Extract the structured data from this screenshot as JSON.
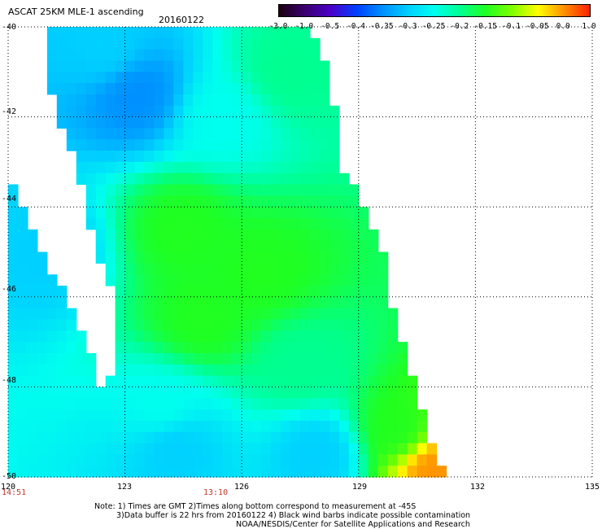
{
  "header": {
    "title": "ASCAT 25KM MLE-1 ascending",
    "date": "20160122"
  },
  "colorbar": {
    "labels": [
      "-3.0",
      "-1.0",
      "-0.5",
      "-0.4",
      "-0.35",
      "-0.3",
      "-0.25",
      "-0.2",
      "-0.15",
      "-0.1",
      "-0.05",
      "0.0",
      "1.0"
    ],
    "colors": [
      "#1a0010",
      "#3b0070",
      "#4a00c8",
      "#0040ff",
      "#0090ff",
      "#00d0ff",
      "#00ffee",
      "#00ff90",
      "#20ff20",
      "#80ff00",
      "#ffff00",
      "#ff9000",
      "#ff2000"
    ]
  },
  "axes": {
    "y_labels": [
      "-40",
      "-42",
      "-44",
      "-46",
      "-48",
      "-50"
    ],
    "x_labels": [
      "120",
      "123",
      "126",
      "129",
      "132",
      "135"
    ],
    "times": [
      "14:51",
      "13:10"
    ]
  },
  "notes": {
    "line1": "Note: 1) Times are GMT 2)Times along bottom correspond to measurement at -45S",
    "line2": "3)Data buffer is 22 hrs from 20160122 4) Black wind barbs indicate possible contamination",
    "line3": "NOAA/NESDIS/Center for Satellite Applications and Research"
  },
  "chart_data": {
    "type": "heatmap",
    "title": "ASCAT 25KM MLE-1 ascending",
    "subtitle": "20160122",
    "x_ticks": [
      120,
      123,
      126,
      129,
      132,
      135
    ],
    "y_ticks": [
      -40,
      -42,
      -44,
      -46,
      -48,
      -50
    ],
    "xlim": [
      120,
      135
    ],
    "ylim": [
      -50,
      -40
    ],
    "grid": true,
    "legend": "top-right colorbar",
    "color_scale": [
      -3.0,
      -1.0,
      -0.5,
      -0.4,
      -0.35,
      -0.3,
      -0.25,
      -0.2,
      -0.15,
      -0.1,
      -0.05,
      0.0,
      1.0
    ],
    "swath_edges": [
      {
        "lat": -40,
        "lon_west": 121.0,
        "lon_east": 127.8
      },
      {
        "lat": -41,
        "lon_west": 120.9,
        "lon_east": 128.2
      },
      {
        "lat": -42,
        "lon_west": 121.3,
        "lon_east": 128.4
      },
      {
        "lat": -43,
        "lon_west": 121.7,
        "lon_east": 128.5
      },
      {
        "lat": -44,
        "lon_west": 122.0,
        "lon_east": 129.2
      },
      {
        "lat": -45,
        "lon_west": 122.3,
        "lon_east": 129.6
      },
      {
        "lat": -46,
        "lon_west": 122.7,
        "lon_east": 129.8
      },
      {
        "lat": -47,
        "lon_west": 122.7,
        "lon_east": 130.1
      },
      {
        "lat": -48,
        "lon_west": 122.6,
        "lon_east": 130.5
      },
      {
        "lat": -49,
        "lon_west": 122.6,
        "lon_east": 130.8
      },
      {
        "lat": -50,
        "lon_west": 122.6,
        "lon_east": 131.3
      }
    ],
    "west_strip_edges": [
      {
        "lat": -43.6,
        "lon_east": 120.2
      },
      {
        "lat": -45,
        "lon_east": 120.8
      },
      {
        "lat": -46,
        "lon_east": 121.5
      },
      {
        "lat": -47,
        "lon_east": 122.0
      },
      {
        "lat": -48,
        "lon_east": 122.4
      },
      {
        "lat": -50,
        "lon_east": 122.6
      }
    ],
    "regions": [
      {
        "lat": -40.5,
        "lon": 122.5,
        "value": -0.3
      },
      {
        "lat": -41.5,
        "lon": 123.3,
        "value": -0.35
      },
      {
        "lat": -41.0,
        "lon": 127.2,
        "value": -0.2
      },
      {
        "lat": -42.0,
        "lon": 125.5,
        "value": -0.25
      },
      {
        "lat": -44.5,
        "lon": 124.5,
        "value": -0.15
      },
      {
        "lat": -45.5,
        "lon": 126.5,
        "value": -0.15
      },
      {
        "lat": -46.5,
        "lon": 125.0,
        "value": -0.15
      },
      {
        "lat": -47.5,
        "lon": 127.5,
        "value": -0.2
      },
      {
        "lat": -48.5,
        "lon": 124.0,
        "value": -0.25
      },
      {
        "lat": -49.3,
        "lon": 124.3,
        "value": -0.3
      },
      {
        "lat": -49.5,
        "lon": 128.0,
        "value": -0.3
      },
      {
        "lat": -49.0,
        "lon": 130.0,
        "value": -0.15
      },
      {
        "lat": -45.0,
        "lon": 121.0,
        "value": -0.3
      },
      {
        "lat": -49.8,
        "lon": 130.9,
        "value": 0.0
      }
    ]
  }
}
